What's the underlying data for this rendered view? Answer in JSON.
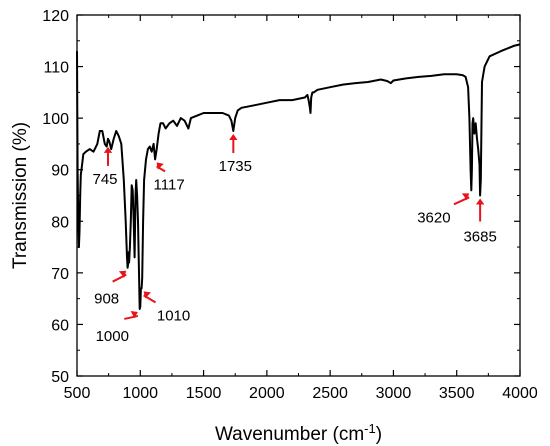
{
  "chart_data": {
    "type": "line",
    "title": "",
    "xlabel": "Wavenumber (cm",
    "xlabel_sup": "-1",
    "xlabel_tail": ")",
    "ylabel": "Transmission (%)",
    "xlim": [
      500,
      4000
    ],
    "ylim": [
      50,
      120
    ],
    "xticks": [
      500,
      1000,
      1500,
      2000,
      2500,
      3000,
      3500,
      4000
    ],
    "yticks": [
      50,
      60,
      70,
      80,
      90,
      100,
      110,
      120
    ],
    "grid": false,
    "legend": false,
    "line_color": "#000000",
    "arrow_color": "#e8141c",
    "series": [
      {
        "x": [
          500,
          505,
          510,
          515,
          520,
          525,
          530,
          540,
          550,
          570,
          600,
          630,
          660,
          680,
          700,
          720,
          735,
          745,
          755,
          770,
          790,
          810,
          830,
          850,
          870,
          885,
          895,
          900,
          905,
          908,
          912,
          918,
          925,
          932,
          940,
          948,
          955,
          962,
          968,
          975,
          982,
          990,
          995,
          1000,
          1005,
          1010,
          1015,
          1022,
          1030,
          1045,
          1060,
          1075,
          1090,
          1105,
          1117,
          1130,
          1145,
          1160,
          1180,
          1200,
          1230,
          1260,
          1290,
          1320,
          1350,
          1380,
          1400,
          1450,
          1500,
          1550,
          1600,
          1650,
          1700,
          1720,
          1735,
          1750,
          1770,
          1800,
          1900,
          2000,
          2100,
          2200,
          2300,
          2320,
          2330,
          2340,
          2345,
          2350,
          2360,
          2370,
          2400,
          2500,
          2600,
          2700,
          2800,
          2900,
          2950,
          2980,
          3000,
          3100,
          3200,
          3300,
          3400,
          3500,
          3550,
          3570,
          3590,
          3600,
          3610,
          3615,
          3620,
          3625,
          3630,
          3640,
          3650,
          3660,
          3670,
          3680,
          3685,
          3690,
          3700,
          3720,
          3760,
          3850,
          3950,
          4000
        ],
        "y": [
          113,
          90,
          80,
          75,
          78,
          85,
          89,
          91,
          93,
          93.5,
          94,
          93.5,
          95,
          97.5,
          97.5,
          95,
          94.5,
          96,
          95.5,
          94,
          96,
          97.5,
          96.5,
          95,
          88,
          80,
          73,
          71,
          72,
          74,
          72,
          75,
          80,
          87,
          86,
          80,
          73,
          85,
          88,
          85,
          80,
          70,
          63,
          63.5,
          67,
          67,
          69,
          80,
          88,
          92,
          94,
          94.5,
          93.5,
          95,
          92,
          94,
          97,
          99,
          99,
          98,
          99,
          99.5,
          98.5,
          100,
          99.5,
          98,
          100,
          100.5,
          101,
          101,
          101,
          101,
          100.5,
          99.5,
          97.5,
          100,
          101.5,
          102,
          102.5,
          103,
          103.5,
          103.5,
          104,
          104.5,
          103.5,
          102,
          101,
          104,
          105,
          105,
          105.5,
          106,
          106.5,
          106.8,
          107,
          107.5,
          107.2,
          106.8,
          107.3,
          107.7,
          108,
          108.2,
          108.5,
          108.5,
          108.3,
          108,
          106,
          100,
          90,
          86,
          90,
          99,
          100,
          97,
          99,
          96,
          94,
          91,
          85,
          88,
          107,
          110,
          112,
          113,
          114,
          114.3
        ]
      }
    ],
    "annotations": [
      {
        "label": "745",
        "x": 745,
        "y": 95
      },
      {
        "label": "908",
        "x": 908,
        "y": 71
      },
      {
        "label": "1000",
        "x": 1000,
        "y": 63
      },
      {
        "label": "1010",
        "x": 1010,
        "y": 67
      },
      {
        "label": "1117",
        "x": 1117,
        "y": 92
      },
      {
        "label": "1735",
        "x": 1735,
        "y": 97.5
      },
      {
        "label": "3620",
        "x": 3620,
        "y": 86
      },
      {
        "label": "3685",
        "x": 3685,
        "y": 85
      }
    ]
  }
}
